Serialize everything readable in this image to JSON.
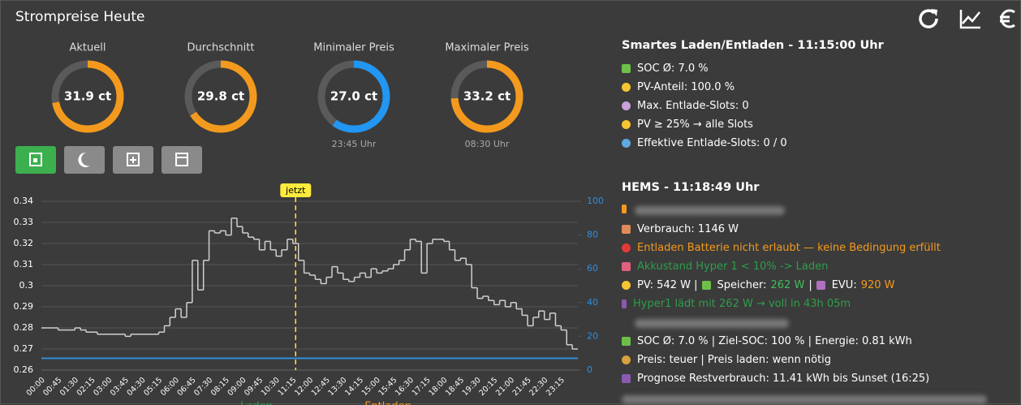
{
  "header": {
    "title": "Strompreise Heute"
  },
  "gauges": [
    {
      "label": "Aktuell",
      "value": "31.9 ct",
      "color": "#f39a1e"
    },
    {
      "label": "Durchschnitt",
      "value": "29.8 ct",
      "color": "#f39a1e"
    },
    {
      "label": "Minimaler Preis",
      "value": "27.0 ct",
      "color": "#2196f3",
      "note": "23:45 Uhr"
    },
    {
      "label": "Maximaler Preis",
      "value": "33.2 ct",
      "color": "#f39a1e",
      "note": "08:30 Uhr"
    }
  ],
  "chart_data": {
    "type": "line",
    "step": true,
    "categories": [
      "00:00",
      null,
      null,
      "00:45",
      null,
      null,
      "01:30",
      null,
      null,
      "02:15",
      null,
      null,
      "03:00",
      null,
      null,
      "03:45",
      null,
      null,
      "04:30",
      null,
      null,
      "05:15",
      null,
      null,
      "06:00",
      null,
      null,
      "06:45",
      null,
      null,
      "07:30",
      null,
      null,
      "08:15",
      null,
      null,
      "09:00",
      null,
      null,
      "09:45",
      null,
      null,
      "10:30",
      null,
      null,
      "11:15",
      null,
      null,
      "12:00",
      null,
      null,
      "12:45",
      null,
      null,
      "13:30",
      null,
      null,
      "14:15",
      null,
      null,
      "15:00",
      null,
      null,
      "15:45",
      null,
      null,
      "16:30",
      null,
      null,
      "17:15",
      null,
      null,
      "18:00",
      null,
      null,
      "18:45",
      null,
      null,
      "19:30",
      null,
      null,
      "20:15",
      null,
      null,
      "21:00",
      null,
      null,
      "21:45",
      null,
      null,
      "22:30",
      null,
      null,
      "23:15",
      null,
      null
    ],
    "series": [
      {
        "color": "#d0d0d0",
        "values": [
          0.28,
          0.28,
          0.28,
          0.279,
          0.279,
          0.279,
          0.28,
          0.279,
          0.278,
          0.278,
          0.277,
          0.277,
          0.277,
          0.277,
          0.277,
          0.276,
          0.277,
          0.277,
          0.277,
          0.277,
          0.277,
          0.278,
          0.281,
          0.285,
          0.289,
          0.285,
          0.292,
          0.312,
          0.298,
          0.312,
          0.326,
          0.325,
          0.326,
          0.324,
          0.332,
          0.328,
          0.325,
          0.323,
          0.322,
          0.317,
          0.321,
          0.317,
          0.314,
          0.317,
          0.322,
          0.32,
          0.312,
          0.306,
          0.305,
          0.303,
          0.301,
          0.304,
          0.309,
          0.306,
          0.303,
          0.302,
          0.304,
          0.306,
          0.304,
          0.308,
          0.306,
          0.307,
          0.308,
          0.31,
          0.312,
          0.317,
          0.322,
          0.321,
          0.306,
          0.32,
          0.322,
          0.322,
          0.321,
          0.317,
          0.312,
          0.313,
          0.31,
          0.299,
          0.294,
          0.295,
          0.293,
          0.291,
          0.293,
          0.29,
          0.292,
          0.289,
          0.286,
          0.281,
          0.285,
          0.288,
          0.284,
          0.287,
          0.281,
          0.279,
          0.272,
          0.27
        ]
      },
      {
        "color": "#2f8fdf",
        "axis": "y2",
        "values": [
          7,
          7,
          7,
          7,
          7,
          7,
          7,
          7,
          7,
          7,
          7,
          7,
          7,
          7,
          7,
          7,
          7,
          7,
          7,
          7,
          7,
          7,
          7,
          7,
          7,
          7,
          7,
          7,
          7,
          7,
          7,
          7,
          7,
          7,
          7,
          7,
          7,
          7,
          7,
          7,
          7,
          7,
          7,
          7,
          7,
          7,
          7,
          7,
          7,
          7,
          7,
          7,
          7,
          7,
          7,
          7,
          7,
          7,
          7,
          7,
          7,
          7,
          7,
          7,
          7,
          7,
          7,
          7,
          7,
          7,
          7,
          7,
          7,
          7,
          7,
          7,
          7,
          7,
          7,
          7,
          7,
          7,
          7,
          7,
          7,
          7,
          7,
          7,
          7,
          7,
          7,
          7,
          7,
          7,
          7,
          7
        ]
      }
    ],
    "ylim": [
      0.26,
      0.34
    ],
    "yticks": [
      0.26,
      0.27,
      0.28,
      0.29,
      0.3,
      0.31,
      0.32,
      0.33,
      0.34
    ],
    "y2lim": [
      0,
      100
    ],
    "y2ticks": [
      0,
      20,
      40,
      60,
      80,
      100
    ],
    "y2color": "#2f8fdf",
    "grid": true,
    "annotation": {
      "text": "jetzt",
      "category": "11:15",
      "color": "#ffeb3b"
    },
    "legend": [
      {
        "name": "Laden",
        "color": "#2e9e4a"
      },
      {
        "name": "Entladen",
        "color": "#f39a1e"
      }
    ]
  },
  "smart": {
    "title": "Smartes Laden/Entladen - 11:15:00 Uhr",
    "lines": [
      "SOC Ø: 7.0 %",
      "PV-Anteil: 100.0 %",
      "Max. Entlade-Slots: 0",
      "PV ≥ 25% → alle Slots",
      "Effektive Entlade-Slots: 0 / 0"
    ]
  },
  "hems": {
    "title": "HEMS - 11:18:49 Uhr",
    "lines": [
      "Verbrauch: 1146 W",
      "Entladen Batterie nicht erlaubt — keine Bedingung erfüllt",
      "Akkustand Hyper 1 < 10% -> Laden",
      [
        "PV: 542 W |",
        "Speicher:",
        "262 W",
        "|",
        "EVU:",
        "920 W"
      ],
      "Hyper1 lädt mit 262 W → voll in 43h 05m",
      "SOC Ø: 7.0 % | Ziel-SOC: 100 % | Energie: 0.81 kWh",
      "Preis: teuer | Preis laden: wenn nötig",
      "Prognose Restverbrauch: 11.41 kWh bis Sunset (16:25)"
    ]
  }
}
